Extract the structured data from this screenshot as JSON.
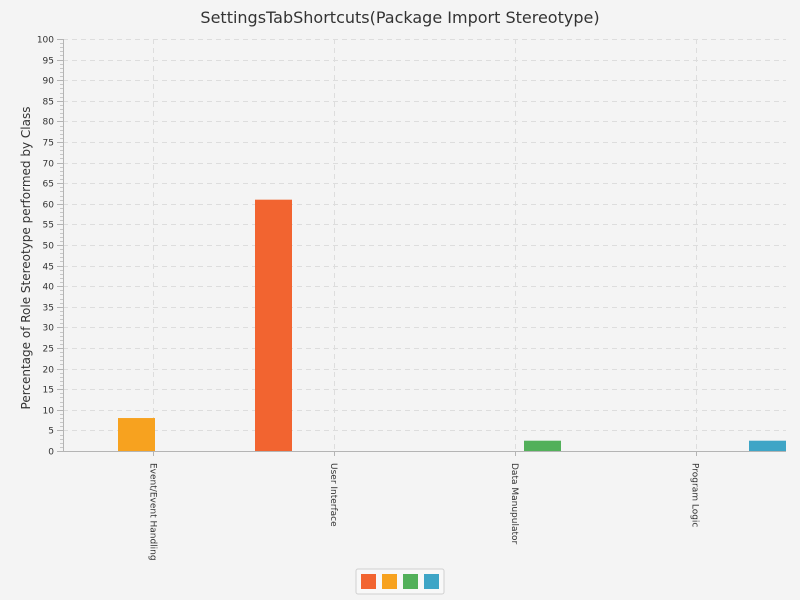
{
  "chart_data": {
    "type": "bar",
    "title": "SettingsTabShortcuts(Package Import Stereotype)",
    "xlabel": "",
    "ylabel": "Percentage of Role Stereotype performed by Class",
    "ylim": [
      0,
      100
    ],
    "y_major_step": 5,
    "y_minor_step": 1,
    "grid": true,
    "legend_position": "bottom",
    "categories": [
      "Event/Event Handling",
      "User Interface",
      "Data Manupulator",
      "Program Logic"
    ],
    "series": [
      {
        "color": "#f26430",
        "values": [
          0,
          61,
          0,
          0
        ]
      },
      {
        "color": "#f7a21f",
        "values": [
          8,
          0,
          0,
          0
        ]
      },
      {
        "color": "#52b05a",
        "values": [
          0,
          0,
          2.5,
          0
        ]
      },
      {
        "color": "#3ea5c6",
        "values": [
          0,
          0,
          0,
          2.5
        ]
      }
    ]
  }
}
